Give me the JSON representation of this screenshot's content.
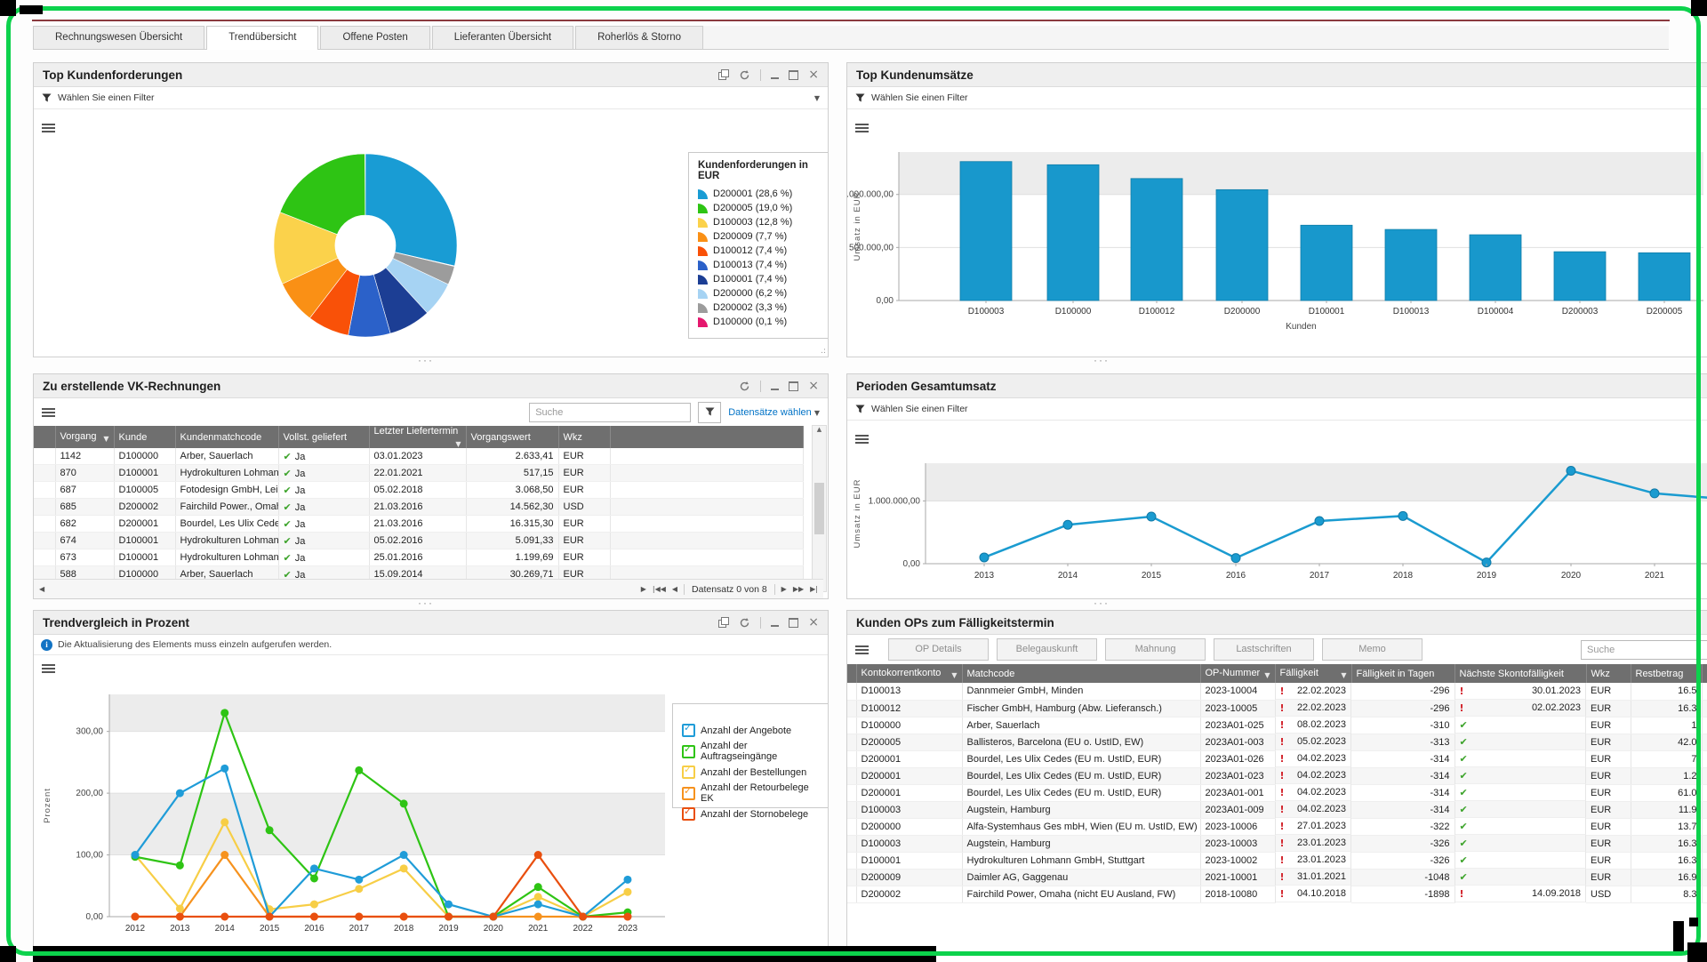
{
  "tabs": {
    "active": 1,
    "items": [
      "Rechnungswesen Übersicht",
      "Trendübersicht",
      "Offene Posten",
      "Lieferanten Übersicht",
      "Roherlös & Storno"
    ]
  },
  "filter_label": "Wählen Sie einen Filter",
  "panels": {
    "forderungen": {
      "title": "Top Kundenforderungen"
    },
    "umsaetze": {
      "title": "Top Kundenumsätze"
    },
    "vk": {
      "title": "Zu erstellende VK-Rechnungen",
      "search_placeholder": "Suche",
      "datasets_link": "Datensätze wählen",
      "columns": [
        "Vorgang",
        "Kunde",
        "Kundenmatchcode",
        "Vollst. geliefert",
        "Letzter Liefertermin",
        "Vorgangswert",
        "Wkz"
      ],
      "rows": [
        {
          "vorgang": "1142",
          "kunde": "D100000",
          "matchcode": "Arber, Sauerlach",
          "geliefert": "Ja",
          "termin": "03.01.2023",
          "wert": "2.633,41",
          "wkz": "EUR"
        },
        {
          "vorgang": "870",
          "kunde": "D100001",
          "matchcode": "Hydrokulturen Lohman...",
          "geliefert": "Ja",
          "termin": "22.01.2021",
          "wert": "517,15",
          "wkz": "EUR"
        },
        {
          "vorgang": "687",
          "kunde": "D100005",
          "matchcode": "Fotodesign GmbH, Lei...",
          "geliefert": "Ja",
          "termin": "05.02.2018",
          "wert": "3.068,50",
          "wkz": "EUR"
        },
        {
          "vorgang": "685",
          "kunde": "D200002",
          "matchcode": "Fairchild Power., Omah...",
          "geliefert": "Ja",
          "termin": "21.03.2016",
          "wert": "14.562,30",
          "wkz": "USD"
        },
        {
          "vorgang": "682",
          "kunde": "D200001",
          "matchcode": "Bourdel, Les Ulix Cedes...",
          "geliefert": "Ja",
          "termin": "21.03.2016",
          "wert": "16.315,30",
          "wkz": "EUR"
        },
        {
          "vorgang": "674",
          "kunde": "D100001",
          "matchcode": "Hydrokulturen Lohman...",
          "geliefert": "Ja",
          "termin": "05.02.2016",
          "wert": "5.091,33",
          "wkz": "EUR"
        },
        {
          "vorgang": "673",
          "kunde": "D100001",
          "matchcode": "Hydrokulturen Lohman...",
          "geliefert": "Ja",
          "termin": "25.01.2016",
          "wert": "1.199,69",
          "wkz": "EUR"
        },
        {
          "vorgang": "588",
          "kunde": "D100000",
          "matchcode": "Arber, Sauerlach",
          "geliefert": "Ja",
          "termin": "15.09.2014",
          "wert": "30.269,71",
          "wkz": "EUR"
        }
      ],
      "pagination": "Datensatz 0 von 8"
    },
    "perioden": {
      "title": "Perioden Gesamtumsatz"
    },
    "trend": {
      "title": "Trendvergleich in Prozent",
      "info": "Die Aktualisierung des Elements muss einzeln aufgerufen werden."
    },
    "ops": {
      "title": "Kunden OPs zum Fälligkeitstermin",
      "buttons": [
        "OP Details",
        "Belegauskunft",
        "Mahnung",
        "Lastschriften",
        "Memo"
      ],
      "search_placeholder": "Suche",
      "columns": [
        "Kontokorrentkonto",
        "Matchcode",
        "OP-Nummer",
        "Fälligkeit",
        "Fälligkeit in Tagen",
        "Nächste Skontofälligkeit",
        "Wkz",
        "Restbetrag"
      ],
      "rows": [
        {
          "konto": "D100013",
          "matchcode": "Dannmeier GmbH, Minden",
          "op": "2023-10004",
          "faellig": "22.02.2023",
          "tage": "-296",
          "skonto": "warn",
          "skonto_datum": "30.01.2023",
          "wkz": "EUR",
          "rest": "16.5"
        },
        {
          "konto": "D100012",
          "matchcode": "Fischer GmbH, Hamburg (Abw. Lieferansch.)",
          "op": "2023-10005",
          "faellig": "22.02.2023",
          "tage": "-296",
          "skonto": "warn",
          "skonto_datum": "02.02.2023",
          "wkz": "EUR",
          "rest": "16.3"
        },
        {
          "konto": "D100000",
          "matchcode": "Arber, Sauerlach",
          "op": "2023A01-025",
          "faellig": "08.02.2023",
          "tage": "-310",
          "skonto": "ok",
          "skonto_datum": "",
          "wkz": "EUR",
          "rest": "1"
        },
        {
          "konto": "D200005",
          "matchcode": "Ballisteros, Barcelona (EU o. UstID, EW)",
          "op": "2023A01-003",
          "faellig": "05.02.2023",
          "tage": "-313",
          "skonto": "ok",
          "skonto_datum": "",
          "wkz": "EUR",
          "rest": "42.0"
        },
        {
          "konto": "D200001",
          "matchcode": "Bourdel, Les Ulix Cedes (EU m. UstID, EUR)",
          "op": "2023A01-026",
          "faellig": "04.02.2023",
          "tage": "-314",
          "skonto": "ok",
          "skonto_datum": "",
          "wkz": "EUR",
          "rest": "7"
        },
        {
          "konto": "D200001",
          "matchcode": "Bourdel, Les Ulix Cedes (EU m. UstID, EUR)",
          "op": "2023A01-023",
          "faellig": "04.02.2023",
          "tage": "-314",
          "skonto": "ok",
          "skonto_datum": "",
          "wkz": "EUR",
          "rest": "1.2"
        },
        {
          "konto": "D200001",
          "matchcode": "Bourdel, Les Ulix Cedes (EU m. UstID, EUR)",
          "op": "2023A01-001",
          "faellig": "04.02.2023",
          "tage": "-314",
          "skonto": "ok",
          "skonto_datum": "",
          "wkz": "EUR",
          "rest": "61.0"
        },
        {
          "konto": "D100003",
          "matchcode": "Augstein, Hamburg",
          "op": "2023A01-009",
          "faellig": "04.02.2023",
          "tage": "-314",
          "skonto": "ok",
          "skonto_datum": "",
          "wkz": "EUR",
          "rest": "11.9"
        },
        {
          "konto": "D200000",
          "matchcode": "Alfa-Systemhaus Ges mbH, Wien (EU m. UstID, EW)",
          "op": "2023-10006",
          "faellig": "27.01.2023",
          "tage": "-322",
          "skonto": "ok",
          "skonto_datum": "",
          "wkz": "EUR",
          "rest": "13.7"
        },
        {
          "konto": "D100003",
          "matchcode": "Augstein, Hamburg",
          "op": "2023-10003",
          "faellig": "23.01.2023",
          "tage": "-326",
          "skonto": "ok",
          "skonto_datum": "",
          "wkz": "EUR",
          "rest": "16.3"
        },
        {
          "konto": "D100001",
          "matchcode": "Hydrokulturen Lohmann GmbH, Stuttgart",
          "op": "2023-10002",
          "faellig": "23.01.2023",
          "tage": "-326",
          "skonto": "ok",
          "skonto_datum": "",
          "wkz": "EUR",
          "rest": "16.3"
        },
        {
          "konto": "D200009",
          "matchcode": "Daimler AG, Gaggenau",
          "op": "2021-10001",
          "faellig": "31.01.2021",
          "tage": "-1048",
          "skonto": "ok",
          "skonto_datum": "",
          "wkz": "EUR",
          "rest": "16.9"
        },
        {
          "konto": "D200002",
          "matchcode": "Fairchild Power, Omaha (nicht EU Ausland, FW)",
          "op": "2018-10080",
          "faellig": "04.10.2018",
          "tage": "-1898",
          "skonto": "warn",
          "skonto_datum": "14.09.2018",
          "wkz": "USD",
          "rest": "8.3"
        }
      ]
    }
  },
  "chart_data": [
    {
      "id": "kundenforderungen_pie",
      "type": "pie",
      "title": "Kundenforderungen in EUR",
      "slices": [
        {
          "label": "D200001 (28,6 %)",
          "pct": 28.6,
          "color": "#199CD4"
        },
        {
          "label": "D200005 (19,0 %)",
          "pct": 19.0,
          "color": "#2EC414"
        },
        {
          "label": "D100003 (12,8 %)",
          "pct": 12.8,
          "color": "#FBD24B"
        },
        {
          "label": "D200009 (7,7 %)",
          "pct": 7.7,
          "color": "#FA9015"
        },
        {
          "label": "D100012 (7,4 %)",
          "pct": 7.4,
          "color": "#F95108"
        },
        {
          "label": "D100013 (7,4 %)",
          "pct": 7.4,
          "color": "#2B61C9"
        },
        {
          "label": "D100001 (7,4 %)",
          "pct": 7.4,
          "color": "#1C3E94"
        },
        {
          "label": "D200000 (6,2 %)",
          "pct": 6.2,
          "color": "#A6D3F3"
        },
        {
          "label": "D200002 (3,3 %)",
          "pct": 3.3,
          "color": "#9C9C9C"
        },
        {
          "label": "D100000 (0,1 %)",
          "pct": 0.1,
          "color": "#E5186E"
        }
      ]
    },
    {
      "id": "kundenumsaetze_bar",
      "type": "bar",
      "title": "Top Kundenumsätze",
      "categories": [
        "D100003",
        "D100000",
        "D100012",
        "D200000",
        "D100001",
        "D100013",
        "D100004",
        "D200003",
        "D200005"
      ],
      "values": [
        1310000,
        1280000,
        1150000,
        1045000,
        710000,
        670000,
        620000,
        460000,
        450000
      ],
      "bar_color": "#1898CC",
      "xlabel": "Kunden",
      "ylabel": "Umsatz in EUR",
      "yticks": [
        "0,00",
        "500.000,00",
        "1.000.000,00"
      ],
      "ylim": [
        0,
        1400000
      ]
    },
    {
      "id": "perioden_gesamtumsatz_line",
      "type": "line",
      "title": "Perioden Gesamtumsatz",
      "x": [
        "2013",
        "2014",
        "2015",
        "2016",
        "2017",
        "2018",
        "2019",
        "2020",
        "2021"
      ],
      "values": [
        100000,
        620000,
        750000,
        90000,
        680000,
        760000,
        20000,
        1480000,
        1120000
      ],
      "edge_value": 1040000,
      "line_color": "#1A9BD0",
      "ylabel": "Umsatz in EUR",
      "yticks": [
        "0,00",
        "1.000.000,00"
      ],
      "ylim": [
        0,
        1600000
      ]
    },
    {
      "id": "trendvergleich_multiline",
      "type": "line",
      "title": "Trendvergleich in Prozent",
      "x": [
        "2012",
        "2013",
        "2014",
        "2015",
        "2016",
        "2017",
        "2018",
        "2019",
        "2020",
        "2021",
        "2022",
        "2023"
      ],
      "series": [
        {
          "name": "Anzahl der Angebote",
          "color": "#1F9CD8",
          "values": [
            100,
            200,
            240,
            0,
            78,
            60,
            100,
            20,
            0,
            20,
            0,
            60
          ]
        },
        {
          "name": "Anzahl der Auftragseingänge",
          "color": "#2EC414",
          "values": [
            97,
            83,
            330,
            140,
            62,
            237,
            183,
            0,
            0,
            48,
            0,
            7
          ]
        },
        {
          "name": "Anzahl der Bestellungen",
          "color": "#F7CE46",
          "values": [
            100,
            13,
            153,
            12,
            20,
            45,
            78,
            0,
            0,
            32,
            0,
            40
          ]
        },
        {
          "name": "Anzahl der Retourbelege EK",
          "color": "#F6921E",
          "values": [
            0,
            0,
            100,
            0,
            0,
            0,
            0,
            0,
            0,
            0,
            0,
            0
          ]
        },
        {
          "name": "Anzahl der Stornobelege",
          "color": "#E94F0F",
          "values": [
            0,
            0,
            0,
            0,
            0,
            0,
            0,
            0,
            0,
            100,
            0,
            0
          ]
        }
      ],
      "ylabel": "Prozent",
      "yticks": [
        "0,00",
        "100,00",
        "200,00",
        "300,00"
      ],
      "ylim": [
        0,
        360
      ]
    }
  ]
}
